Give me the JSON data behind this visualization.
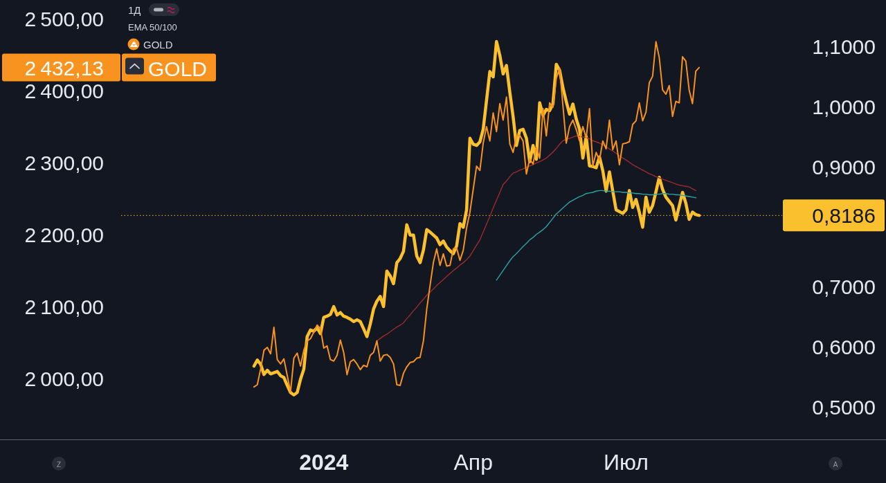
{
  "chart_data": {
    "type": "line",
    "categories": [
      null,
      null,
      null,
      null,
      null,
      null,
      null,
      null,
      null,
      null,
      null,
      null,
      null,
      null,
      null,
      null,
      null,
      null,
      null,
      null,
      null,
      null,
      null,
      null,
      null,
      null,
      null,
      null,
      null,
      null,
      null,
      null,
      null,
      null,
      null,
      null,
      null,
      null,
      null,
      null,
      null,
      null,
      null,
      null,
      null,
      null,
      null,
      null,
      null,
      null,
      null,
      null,
      null,
      null,
      null,
      null,
      null,
      null,
      null,
      null,
      null,
      "2024",
      null,
      null,
      null,
      null,
      null,
      null,
      null,
      null,
      null,
      null,
      null,
      null,
      null,
      null,
      null,
      null,
      null,
      null,
      null,
      null,
      null,
      null,
      null,
      null,
      null,
      null,
      null,
      null,
      null,
      null,
      null,
      null,
      null,
      null,
      null,
      null,
      null,
      null,
      null,
      null,
      null,
      null,
      null,
      null,
      "Апр",
      null,
      null,
      null,
      null,
      null,
      null,
      null,
      null,
      null,
      null,
      null,
      null,
      null,
      null,
      null,
      null,
      null,
      null,
      null,
      null,
      null,
      null,
      null,
      null,
      null,
      null,
      null,
      null,
      null,
      null,
      null,
      null,
      null,
      null,
      null,
      null,
      null,
      null,
      null,
      null,
      null,
      null,
      null,
      null,
      null,
      "Июл",
      null,
      null,
      null,
      null,
      null,
      null,
      null,
      null,
      null,
      null,
      null,
      null,
      null,
      null,
      null,
      null,
      null,
      null,
      null,
      null,
      null,
      null,
      null,
      null,
      null,
      null,
      null,
      null,
      null,
      null,
      null,
      null,
      null,
      null,
      null,
      null,
      null,
      null,
      null,
      null,
      null,
      null,
      null,
      null,
      null,
      null,
      null
    ],
    "ylim": [
      1915,
      2526
    ],
    "yticks": [
      {
        "value": 2000,
        "label": "2 000,00"
      },
      {
        "value": 2100,
        "label": "2 100,00"
      },
      {
        "value": 2200,
        "label": "2 200,00"
      },
      {
        "value": 2300,
        "label": "2 300,00"
      },
      {
        "value": 2400,
        "label": "2 400,00"
      },
      {
        "value": 2500,
        "label": "2 500,00"
      }
    ],
    "y2lim": [
      0.446,
      1.177
    ],
    "y2ticks": [
      {
        "value": 0.5,
        "label": "0,5000"
      },
      {
        "value": 0.6,
        "label": "0,6000"
      },
      {
        "value": 0.7,
        "label": "0,7000"
      },
      {
        "value": 0.9,
        "label": "0,9000"
      },
      {
        "value": 1.0,
        "label": "1,0000"
      },
      {
        "value": 1.1,
        "label": "1,1000"
      }
    ],
    "legend": "top left",
    "series": [
      {
        "color": "#fbc02d",
        "axis": "y2",
        "values": [
          null,
          null,
          null,
          null,
          null,
          null,
          null,
          null,
          null,
          null,
          null,
          null,
          null,
          null,
          null,
          null,
          null,
          null,
          null,
          null,
          null,
          null,
          null,
          null,
          null,
          null,
          null,
          null,
          null,
          null,
          null,
          null,
          null,
          null,
          null,
          null,
          null,
          null,
          null,
          null,
          0.568,
          0.578,
          0.571,
          0.554,
          0.561,
          0.555,
          0.557,
          0.559,
          0.552,
          0.549,
          0.536,
          0.524,
          0.52,
          0.524,
          0.546,
          0.563,
          0.617,
          0.628,
          0.626,
          0.632,
          0.622,
          0.649,
          0.651,
          0.654,
          0.667,
          0.653,
          0.657,
          0.651,
          0.649,
          0.646,
          0.642,
          0.645,
          0.642,
          0.63,
          0.617,
          0.638,
          0.663,
          0.676,
          0.684,
          0.667,
          0.726,
          0.718,
          0.705,
          0.74,
          0.747,
          0.759,
          0.803,
          0.786,
          0.786,
          0.751,
          0.74,
          0.761,
          0.795,
          0.791,
          0.786,
          0.781,
          0.77,
          0.776,
          0.766,
          0.76,
          0.755,
          0.768,
          0.805,
          0.799,
          0.828,
          0.947,
          0.937,
          0.935,
          0.941,
          0.962,
          1.01,
          1.058,
          1.049,
          1.108,
          1.085,
          1.054,
          1.068,
          1.024,
          0.983,
          0.935,
          0.96,
          0.962,
          0.947,
          0.908,
          0.935,
          0.912,
          1.006,
          0.985,
          0.995,
          0.993,
          1.004,
          1.07,
          1.06,
          1.031,
          1.008,
          0.987,
          1.004,
          0.979,
          0.962,
          0.914,
          0.95,
          0.901,
          0.9,
          0.898,
          0.916,
          0.893,
          0.859,
          0.891,
          0.859,
          0.828,
          0.825,
          0.822,
          0.828,
          0.86,
          0.832,
          0.845,
          0.824,
          0.799,
          0.849,
          0.824,
          0.835,
          0.858,
          0.882,
          0.862,
          0.849,
          0.842,
          0.835,
          0.811,
          0.834,
          0.857,
          0.839,
          0.812,
          0.824,
          0.82,
          0.8186,
          null,
          null,
          null,
          null,
          null,
          null,
          null,
          null,
          null,
          null,
          null,
          null,
          null,
          null,
          null,
          null,
          null,
          null,
          null,
          null,
          null,
          null,
          null,
          null,
          null
        ]
      },
      {
        "color": "#9b2c2c",
        "axis": "y2",
        "values": [
          null,
          null,
          null,
          null,
          null,
          null,
          null,
          null,
          null,
          null,
          null,
          null,
          null,
          null,
          null,
          null,
          null,
          null,
          null,
          null,
          null,
          null,
          null,
          null,
          null,
          null,
          null,
          null,
          null,
          null,
          null,
          null,
          null,
          null,
          null,
          null,
          null,
          null,
          null,
          null,
          null,
          null,
          null,
          null,
          null,
          null,
          null,
          null,
          null,
          null,
          null,
          null,
          null,
          null,
          null,
          null,
          null,
          null,
          null,
          null,
          null,
          null,
          null,
          null,
          null,
          null,
          null,
          null,
          null,
          null,
          null,
          null,
          null,
          null,
          null,
          null,
          null,
          0.61,
          0.614,
          0.618,
          0.621,
          0.625,
          0.629,
          0.633,
          0.636,
          0.64,
          0.647,
          0.653,
          0.66,
          0.666,
          0.673,
          0.679,
          0.686,
          0.691,
          0.696,
          0.702,
          0.707,
          0.712,
          0.717,
          0.722,
          0.727,
          0.731,
          0.736,
          0.74,
          0.745,
          0.751,
          0.76,
          0.769,
          0.778,
          0.791,
          0.804,
          0.817,
          0.831,
          0.844,
          0.857,
          0.87,
          0.876,
          0.883,
          0.889,
          0.891,
          0.894,
          0.896,
          0.899,
          0.901,
          0.903,
          0.906,
          0.908,
          0.911,
          0.914,
          0.919,
          0.924,
          0.93,
          0.937,
          0.943,
          0.945,
          0.947,
          0.949,
          0.951,
          0.95,
          0.949,
          0.948,
          0.946,
          0.943,
          0.941,
          0.939,
          0.936,
          0.933,
          0.929,
          0.926,
          0.922,
          0.918,
          0.914,
          0.911,
          0.907,
          0.903,
          0.9,
          0.897,
          0.894,
          0.891,
          0.888,
          0.886,
          0.883,
          0.881,
          0.879,
          0.877,
          0.875,
          0.873,
          0.871,
          0.869,
          0.868,
          0.867,
          0.866,
          0.863,
          0.86,
          null,
          null,
          null,
          null,
          null,
          null,
          null,
          null,
          null,
          null,
          null,
          null,
          null,
          null,
          null,
          null,
          null,
          null,
          null,
          null,
          null,
          null,
          null,
          null,
          null,
          null
        ]
      },
      {
        "color": "#2aa5a5",
        "axis": "y2",
        "values": [
          null,
          null,
          null,
          null,
          null,
          null,
          null,
          null,
          null,
          null,
          null,
          null,
          null,
          null,
          null,
          null,
          null,
          null,
          null,
          null,
          null,
          null,
          null,
          null,
          null,
          null,
          null,
          null,
          null,
          null,
          null,
          null,
          null,
          null,
          null,
          null,
          null,
          null,
          null,
          null,
          null,
          null,
          null,
          null,
          null,
          null,
          null,
          null,
          null,
          null,
          null,
          null,
          null,
          null,
          null,
          null,
          null,
          null,
          null,
          null,
          null,
          null,
          null,
          null,
          null,
          null,
          null,
          null,
          null,
          null,
          null,
          null,
          null,
          null,
          null,
          null,
          null,
          null,
          null,
          null,
          null,
          null,
          null,
          null,
          null,
          null,
          null,
          null,
          null,
          null,
          null,
          null,
          null,
          null,
          null,
          null,
          null,
          null,
          null,
          null,
          null,
          null,
          null,
          null,
          null,
          null,
          null,
          null,
          null,
          null,
          null,
          null,
          null,
          0.711,
          0.719,
          0.727,
          0.735,
          0.743,
          0.75,
          0.755,
          0.761,
          0.767,
          0.772,
          0.778,
          0.782,
          0.787,
          0.791,
          0.795,
          0.8,
          0.807,
          0.814,
          0.821,
          0.826,
          0.831,
          0.836,
          0.841,
          0.844,
          0.847,
          0.85,
          0.852,
          0.855,
          0.856,
          0.857,
          0.859,
          0.86,
          0.86,
          0.859,
          0.859,
          0.858,
          0.858,
          0.858,
          0.857,
          0.857,
          0.856,
          0.856,
          0.855,
          0.855,
          0.854,
          0.854,
          0.853,
          0.853,
          0.854,
          0.854,
          0.855,
          0.855,
          0.854,
          0.854,
          0.853,
          0.853,
          0.852,
          0.851,
          0.85,
          0.849,
          0.848,
          null,
          null,
          null,
          null,
          null,
          null,
          null,
          null,
          null,
          null,
          null,
          null,
          null,
          null,
          null,
          null,
          null,
          null,
          null,
          null,
          null,
          null,
          null,
          null,
          null,
          null
        ]
      },
      {
        "name": "GOLD",
        "color": "#f7931e",
        "axis": "y",
        "values": [
          null,
          null,
          null,
          null,
          null,
          null,
          null,
          null,
          null,
          null,
          null,
          null,
          null,
          null,
          null,
          null,
          null,
          null,
          null,
          null,
          null,
          null,
          null,
          null,
          null,
          null,
          null,
          null,
          null,
          null,
          null,
          null,
          null,
          null,
          null,
          null,
          null,
          null,
          null,
          null,
          1988,
          1991,
          2013,
          2039,
          2043,
          2034,
          2071,
          2026,
          2020,
          2027,
          2004,
          1981,
          2028,
          2035,
          2017,
          2039,
          2052,
          2055,
          2064,
          2074,
          2069,
          2042,
          2045,
          2026,
          2024,
          2032,
          2053,
          2036,
          2005,
          2023,
          2026,
          2020,
          2012,
          2018,
          2016,
          2032,
          2036,
          2052,
          2024,
          2032,
          2033,
          2029,
          2020,
          1991,
          1990,
          2007,
          2016,
          2022,
          2023,
          2028,
          2029,
          2052,
          2096,
          2129,
          2161,
          2180,
          2157,
          2173,
          2156,
          2157,
          2180,
          2181,
          2164,
          2178,
          2209,
          2231,
          2263,
          2295,
          2289,
          2327,
          2350,
          2330,
          2369,
          2343,
          2382,
          2359,
          2391,
          2326,
          2314,
          2337,
          2338,
          2330,
          2284,
          2305,
          2298,
          2321,
          2306,
          2375,
          2337,
          2383,
          2377,
          2417,
          2431,
          2379,
          2327,
          2350,
          2359,
          2346,
          2330,
          2350,
          2334,
          2375,
          2295,
          2314,
          2303,
          2330,
          2319,
          2359,
          2318,
          2330,
          2297,
          2326,
          2327,
          2329,
          2353,
          2358,
          2383,
          2358,
          2370,
          2411,
          2420,
          2468,
          2446,
          2401,
          2395,
          2407,
          2364,
          2385,
          2383,
          2447,
          2441,
          2401,
          2382,
          2427,
          2432.13,
          null,
          null,
          null,
          null,
          null,
          null,
          null,
          null,
          null,
          null,
          null,
          null,
          null,
          null,
          null,
          null,
          null,
          null,
          null,
          null,
          null,
          null,
          null,
          null,
          null
        ]
      }
    ],
    "ref_lines": [
      {
        "axis": "y2",
        "value": 0.8186,
        "label": "0,8186",
        "color": "#fbc02d",
        "line_style": "dotted"
      }
    ],
    "annotations": [
      "1Д",
      "EMA 50/100",
      "2 432,13",
      "Z",
      "A"
    ]
  }
}
